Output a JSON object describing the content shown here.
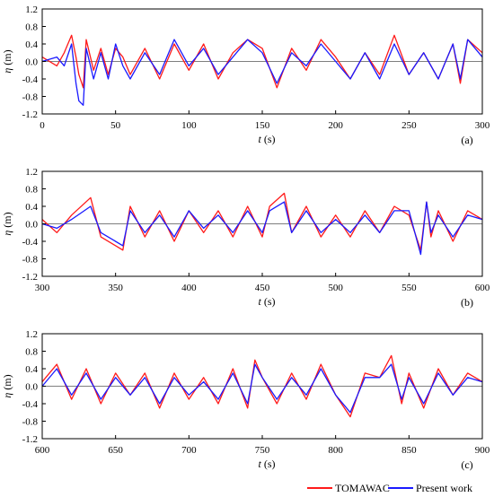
{
  "chart_data": [
    {
      "type": "line",
      "panel_label": "(a)",
      "xlabel_sym": "t",
      "xlabel_unit": "(s)",
      "ylabel_sym": "η",
      "ylabel_unit": "(m)",
      "xlim": [
        0,
        300
      ],
      "ylim": [
        -1.2,
        1.2
      ],
      "xticks": [
        "0",
        "50",
        "100",
        "150",
        "200",
        "250",
        "300"
      ],
      "yticks": [
        "1.2",
        "0.8",
        "0.4",
        "0.0",
        "-0.4",
        "-0.8",
        "-1.2"
      ],
      "grid": false,
      "series": [
        {
          "name": "TOMAWAC",
          "color": "#ff1a1a",
          "x": [
            0,
            10,
            15,
            20,
            23,
            25,
            28,
            30,
            35,
            40,
            45,
            50,
            55,
            60,
            70,
            80,
            90,
            100,
            110,
            120,
            130,
            140,
            150,
            160,
            170,
            180,
            190,
            200,
            210,
            220,
            230,
            240,
            250,
            260,
            270,
            280,
            285,
            290,
            300
          ],
          "y": [
            0.1,
            -0.1,
            0.2,
            0.6,
            0.1,
            -0.3,
            -0.6,
            0.5,
            -0.2,
            0.3,
            -0.3,
            0.3,
            0.1,
            -0.3,
            0.3,
            -0.4,
            0.4,
            -0.2,
            0.4,
            -0.4,
            0.2,
            0.5,
            0.3,
            -0.6,
            0.3,
            -0.2,
            0.5,
            0.1,
            -0.4,
            0.2,
            -0.3,
            0.6,
            -0.3,
            0.2,
            -0.4,
            0.4,
            -0.5,
            0.5,
            0.2
          ]
        },
        {
          "name": "Present work",
          "color": "#1a1aff",
          "x": [
            0,
            10,
            15,
            20,
            23,
            25,
            28,
            30,
            35,
            40,
            45,
            50,
            55,
            60,
            70,
            80,
            90,
            100,
            110,
            120,
            130,
            140,
            150,
            160,
            170,
            180,
            190,
            200,
            210,
            220,
            230,
            240,
            250,
            260,
            270,
            280,
            285,
            290,
            300
          ],
          "y": [
            0.0,
            0.1,
            -0.1,
            0.4,
            -0.5,
            -0.9,
            -1.0,
            0.3,
            -0.4,
            0.2,
            -0.4,
            0.4,
            -0.1,
            -0.4,
            0.2,
            -0.3,
            0.5,
            -0.1,
            0.3,
            -0.3,
            0.1,
            0.5,
            0.2,
            -0.5,
            0.2,
            -0.1,
            0.4,
            0.0,
            -0.4,
            0.2,
            -0.4,
            0.4,
            -0.3,
            0.2,
            -0.4,
            0.4,
            -0.4,
            0.5,
            0.1
          ]
        }
      ]
    },
    {
      "type": "line",
      "panel_label": "(b)",
      "xlabel_sym": "t",
      "xlabel_unit": "(s)",
      "ylabel_sym": "η",
      "ylabel_unit": "(m)",
      "xlim": [
        300,
        600
      ],
      "ylim": [
        -1.2,
        1.2
      ],
      "xticks": [
        "300",
        "350",
        "400",
        "450",
        "500",
        "550",
        "600"
      ],
      "yticks": [
        "1.2",
        "0.8",
        "0.4",
        "0.0",
        "-0.4",
        "-0.8",
        "-1.2"
      ],
      "grid": false,
      "series": [
        {
          "name": "TOMAWAC",
          "color": "#ff1a1a",
          "x": [
            300,
            310,
            320,
            333,
            340,
            355,
            360,
            370,
            380,
            390,
            400,
            410,
            420,
            430,
            440,
            450,
            455,
            465,
            470,
            480,
            490,
            500,
            510,
            520,
            530,
            540,
            550,
            558,
            562,
            565,
            570,
            580,
            590,
            600
          ],
          "y": [
            0.1,
            -0.2,
            0.2,
            0.6,
            -0.3,
            -0.6,
            0.4,
            -0.3,
            0.3,
            -0.4,
            0.3,
            -0.2,
            0.3,
            -0.3,
            0.4,
            -0.3,
            0.4,
            0.7,
            -0.2,
            0.4,
            -0.3,
            0.2,
            -0.3,
            0.3,
            -0.2,
            0.4,
            0.2,
            -0.6,
            0.5,
            -0.3,
            0.3,
            -0.4,
            0.3,
            0.1
          ]
        },
        {
          "name": "Present work",
          "color": "#1a1aff",
          "x": [
            300,
            310,
            320,
            333,
            340,
            355,
            360,
            370,
            380,
            390,
            400,
            410,
            420,
            430,
            440,
            450,
            455,
            465,
            470,
            480,
            490,
            500,
            510,
            520,
            530,
            540,
            550,
            558,
            562,
            565,
            570,
            580,
            590,
            600
          ],
          "y": [
            0.0,
            -0.1,
            0.1,
            0.4,
            -0.2,
            -0.5,
            0.3,
            -0.2,
            0.2,
            -0.3,
            0.3,
            -0.1,
            0.2,
            -0.2,
            0.3,
            -0.2,
            0.3,
            0.5,
            -0.2,
            0.3,
            -0.2,
            0.1,
            -0.2,
            0.2,
            -0.2,
            0.3,
            0.3,
            -0.7,
            0.5,
            -0.2,
            0.2,
            -0.3,
            0.2,
            0.1
          ]
        }
      ]
    },
    {
      "type": "line",
      "panel_label": "(c)",
      "xlabel_sym": "t",
      "xlabel_unit": "(s)",
      "ylabel_sym": "η",
      "ylabel_unit": "(m)",
      "xlim": [
        600,
        900
      ],
      "ylim": [
        -1.2,
        1.2
      ],
      "xticks": [
        "600",
        "650",
        "700",
        "750",
        "800",
        "850",
        "900"
      ],
      "yticks": [
        "1.2",
        "0.8",
        "0.4",
        "0.0",
        "-0.4",
        "-0.8",
        "-1.2"
      ],
      "grid": false,
      "series": [
        {
          "name": "TOMAWAC",
          "color": "#ff1a1a",
          "x": [
            600,
            610,
            620,
            630,
            640,
            650,
            660,
            670,
            680,
            690,
            700,
            710,
            720,
            730,
            740,
            745,
            750,
            760,
            770,
            780,
            790,
            800,
            810,
            820,
            830,
            838,
            845,
            850,
            860,
            870,
            880,
            890,
            900
          ],
          "y": [
            0.1,
            0.5,
            -0.3,
            0.4,
            -0.4,
            0.3,
            -0.2,
            0.3,
            -0.5,
            0.3,
            -0.3,
            0.2,
            -0.4,
            0.4,
            -0.5,
            0.6,
            0.2,
            -0.4,
            0.3,
            -0.3,
            0.5,
            -0.2,
            -0.7,
            0.3,
            0.2,
            0.7,
            -0.4,
            0.3,
            -0.5,
            0.4,
            -0.2,
            0.3,
            0.1
          ]
        },
        {
          "name": "Present work",
          "color": "#1a1aff",
          "x": [
            600,
            610,
            620,
            630,
            640,
            650,
            660,
            670,
            680,
            690,
            700,
            710,
            720,
            730,
            740,
            745,
            750,
            760,
            770,
            780,
            790,
            800,
            810,
            820,
            830,
            838,
            845,
            850,
            860,
            870,
            880,
            890,
            900
          ],
          "y": [
            0.0,
            0.4,
            -0.2,
            0.3,
            -0.3,
            0.2,
            -0.2,
            0.2,
            -0.4,
            0.2,
            -0.2,
            0.1,
            -0.3,
            0.3,
            -0.4,
            0.5,
            0.2,
            -0.3,
            0.2,
            -0.2,
            0.4,
            -0.2,
            -0.6,
            0.2,
            0.2,
            0.5,
            -0.3,
            0.2,
            -0.4,
            0.3,
            -0.2,
            0.2,
            0.1
          ]
        }
      ]
    }
  ],
  "legend": {
    "items": [
      {
        "label": "TOMAWAC",
        "color": "#ff1a1a"
      },
      {
        "label": "Present work",
        "color": "#1a1aff"
      }
    ]
  }
}
